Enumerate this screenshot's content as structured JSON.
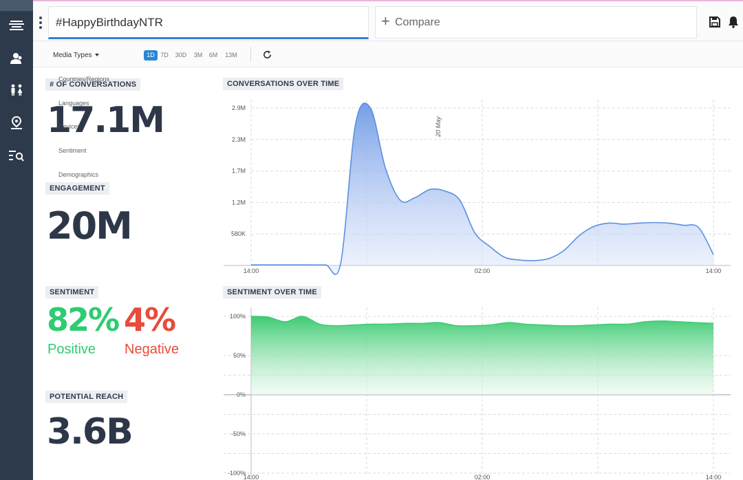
{
  "header": {
    "query": "#HappyBirthdayNTR",
    "compare_label": "Compare",
    "save_icon": "save-icon",
    "bell_icon": "bell-icon"
  },
  "sidebar": {
    "items": [
      {
        "icon": "stream-icon"
      },
      {
        "icon": "users-icon"
      },
      {
        "icon": "demographics-icon"
      },
      {
        "icon": "map-pin-icon"
      },
      {
        "icon": "list-search-icon"
      }
    ]
  },
  "toolbar": {
    "media_types": "Media Types",
    "ranges": [
      "1D",
      "7D",
      "30D",
      "3M",
      "6M",
      "13M"
    ],
    "active_range": "1D"
  },
  "dropdown": {
    "items": [
      "Countries/Regions",
      "Languages",
      "Devices",
      "Sentiment",
      "Demographics"
    ]
  },
  "metrics": {
    "conversations_label": "# OF CONVERSATIONS",
    "conversations_value": "17.1M",
    "engagement_label": "ENGAGEMENT",
    "engagement_value": "20M",
    "sentiment_label": "SENTIMENT",
    "positive_value": "82%",
    "positive_label": "Positive",
    "negative_value": "4%",
    "negative_label": "Negative",
    "reach_label": "POTENTIAL REACH",
    "reach_value": "3.6B"
  },
  "colors": {
    "positive": "#2ecc71",
    "negative": "#e74c3c",
    "conversations_line": "#5b8fe0",
    "sentiment_line": "#3ecb73",
    "active_range": "#2a86d3"
  },
  "chart_data": [
    {
      "type": "area",
      "title": "CONVERSATIONS OVER TIME",
      "x_ticks": [
        "14:00",
        "02:00",
        "14:00"
      ],
      "y_ticks": [
        "580K",
        "1.2M",
        "1.7M",
        "2.3M",
        "2.9M"
      ],
      "annotation": "20 May",
      "ylim": [
        0,
        2900000
      ],
      "series": [
        {
          "values": [
            10000,
            10000,
            10000,
            10000,
            10000,
            10000,
            30000,
            2600000,
            2900000,
            1800000,
            1200000,
            1250000,
            1400000,
            1370000,
            1200000,
            600000,
            350000,
            150000,
            100000,
            90000,
            130000,
            280000,
            550000,
            720000,
            780000,
            760000,
            780000,
            790000,
            780000,
            740000,
            700000,
            200000
          ]
        }
      ]
    },
    {
      "type": "area",
      "title": "SENTIMENT OVER TIME",
      "x_ticks": [
        "14:00",
        "02:00",
        "14:00"
      ],
      "y_ticks": [
        "100%",
        "50%",
        "0%",
        "-50%",
        "-100%"
      ],
      "ylim": [
        -100,
        100
      ],
      "series": [
        {
          "values": [
            100,
            99,
            93,
            100,
            90,
            88,
            89,
            90,
            90,
            91,
            91,
            92,
            88,
            88,
            89,
            92,
            90,
            89,
            88,
            88,
            89,
            90,
            90,
            93,
            94,
            93,
            92,
            91
          ]
        }
      ]
    }
  ]
}
